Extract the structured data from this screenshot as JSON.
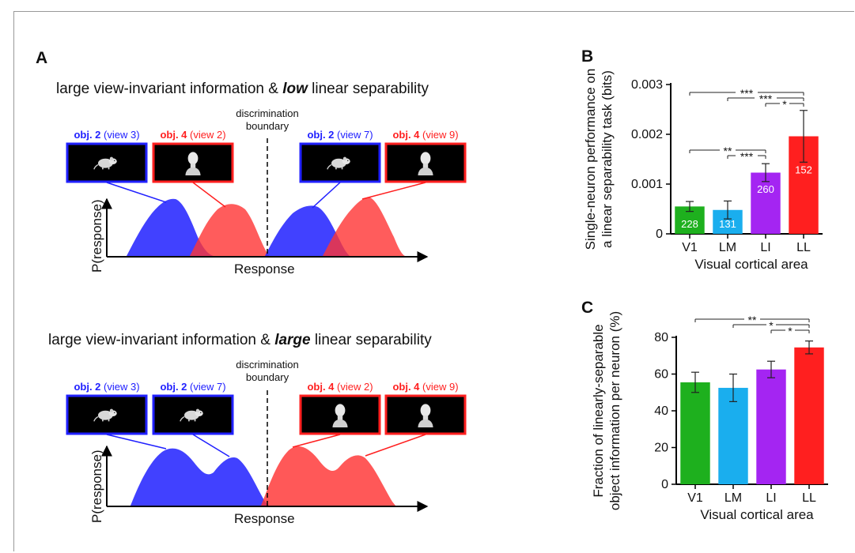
{
  "colors": {
    "green": "#1eb01e",
    "cyan": "#1aaeee",
    "purple": "#a425f2",
    "red": "#ff1f1f",
    "blue": "#2020ff",
    "pink": "#ff3333"
  },
  "panel_a": {
    "label": "A",
    "discrimination_label": "discrimination\nboundary",
    "y_axis_label": "P(response)",
    "x_axis_label": "Response",
    "top": {
      "title_pre": "large view-invariant information & ",
      "title_emph": "low",
      "title_post": " linear separability",
      "images": [
        {
          "obj": "obj. 2",
          "view": "(view 3)",
          "color": "blue",
          "icon": "rat-icon"
        },
        {
          "obj": "obj. 4",
          "view": "(view 2)",
          "color": "red",
          "icon": "head-icon"
        },
        {
          "obj": "obj. 2",
          "view": "(view 7)",
          "color": "blue",
          "icon": "rat-icon"
        },
        {
          "obj": "obj. 4",
          "view": "(view 9)",
          "color": "red",
          "icon": "head-icon"
        }
      ]
    },
    "bottom": {
      "title_pre": "large view-invariant information & ",
      "title_emph": "large",
      "title_post": " linear separability",
      "images": [
        {
          "obj": "obj. 2",
          "view": "(view 3)",
          "color": "blue",
          "icon": "rat-icon"
        },
        {
          "obj": "obj. 2",
          "view": "(view 7)",
          "color": "blue",
          "icon": "rat-icon"
        },
        {
          "obj": "obj. 4",
          "view": "(view 2)",
          "color": "red",
          "icon": "head-icon"
        },
        {
          "obj": "obj. 4",
          "view": "(view 9)",
          "color": "red",
          "icon": "head-icon"
        }
      ]
    }
  },
  "chart_data": [
    {
      "type": "bar",
      "panel": "B",
      "categories": [
        "V1",
        "LM",
        "LI",
        "LL"
      ],
      "values": [
        0.00055,
        0.00048,
        0.00123,
        0.00196
      ],
      "errors": [
        0.0001,
        0.00018,
        0.00018,
        0.00052
      ],
      "counts": [
        "228",
        "131",
        "260",
        "152"
      ],
      "ylim": [
        0,
        0.003
      ],
      "yticks": [
        "0",
        "0.001",
        "0.002",
        "0.003"
      ],
      "ylabel_line1": "Single-neuron performance on",
      "ylabel_line2": "a linear separability task (bits)",
      "xlabel": "Visual cortical area",
      "significance": [
        {
          "from": 0,
          "to": 3,
          "label": "***"
        },
        {
          "from": 1,
          "to": 3,
          "label": "***"
        },
        {
          "from": 2,
          "to": 3,
          "label": "*"
        },
        {
          "from": 0,
          "to": 2,
          "label": "**"
        },
        {
          "from": 1,
          "to": 2,
          "label": "***"
        }
      ]
    },
    {
      "type": "bar",
      "panel": "C",
      "categories": [
        "V1",
        "LM",
        "LI",
        "LL"
      ],
      "values": [
        55.5,
        52.5,
        62.5,
        74.5
      ],
      "errors": [
        5.5,
        7.5,
        4.5,
        3.5
      ],
      "ylim": [
        0,
        80
      ],
      "yticks": [
        "0",
        "20",
        "40",
        "60",
        "80"
      ],
      "ylabel_line1": "Fraction of linearly-separable",
      "ylabel_line2": "object information per neuron (%)",
      "xlabel": "Visual cortical area",
      "significance": [
        {
          "from": 0,
          "to": 3,
          "label": "**"
        },
        {
          "from": 1,
          "to": 3,
          "label": "*"
        },
        {
          "from": 2,
          "to": 3,
          "label": "*"
        }
      ]
    }
  ]
}
